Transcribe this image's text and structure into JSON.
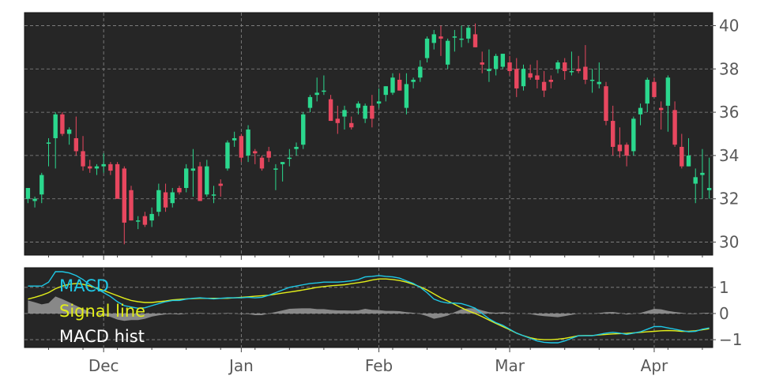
{
  "chart_data": [
    {
      "type": "candlestick",
      "title": "",
      "xlabel": "",
      "ylabel": "",
      "ylim": [
        29.4,
        40.6
      ],
      "yticks": [
        30,
        32,
        34,
        36,
        38,
        40
      ],
      "ytick_labels": [
        "30",
        "32",
        "34",
        "36",
        "38",
        "40"
      ],
      "xtick_labels": [
        "Dec",
        "Jan",
        "Feb",
        "Mar",
        "Apr"
      ],
      "grid": true,
      "up_color": "#2bd88e",
      "down_color": "#e8475f",
      "n_sessions": 100,
      "month_start_index": [
        11,
        31,
        51,
        70,
        91
      ],
      "candles": [
        [
          32.0,
          32.5,
          31.8,
          32.5
        ],
        [
          31.9,
          32.1,
          31.6,
          32.0
        ],
        [
          32.2,
          33.2,
          31.8,
          33.1
        ],
        [
          34.6,
          34.8,
          33.5,
          34.6
        ],
        [
          34.8,
          36.0,
          33.4,
          35.9
        ],
        [
          35.9,
          36.0,
          34.9,
          35.0
        ],
        [
          35.0,
          35.3,
          34.5,
          35.2
        ],
        [
          34.8,
          35.8,
          34.0,
          34.2
        ],
        [
          34.2,
          34.9,
          33.3,
          33.5
        ],
        [
          33.5,
          33.8,
          33.2,
          33.4
        ],
        [
          33.4,
          33.6,
          33.1,
          33.5
        ],
        [
          33.5,
          34.1,
          33.2,
          33.6
        ],
        [
          33.6,
          33.7,
          33.1,
          33.3
        ],
        [
          33.6,
          33.7,
          32.0,
          32.0
        ],
        [
          33.4,
          33.5,
          29.9,
          30.9
        ],
        [
          32.4,
          32.6,
          31.0,
          31.0
        ],
        [
          31.0,
          31.2,
          30.6,
          31.0
        ],
        [
          31.2,
          31.4,
          30.7,
          30.8
        ],
        [
          31.0,
          31.6,
          30.7,
          31.3
        ],
        [
          31.4,
          32.7,
          31.2,
          32.4
        ],
        [
          32.3,
          32.7,
          31.4,
          31.6
        ],
        [
          31.8,
          32.5,
          31.6,
          32.3
        ],
        [
          32.5,
          32.6,
          32.2,
          32.3
        ],
        [
          32.5,
          33.6,
          32.3,
          33.4
        ],
        [
          33.3,
          34.3,
          32.1,
          33.4
        ],
        [
          33.5,
          33.7,
          31.9,
          31.9
        ],
        [
          32.2,
          33.8,
          32.1,
          33.5
        ],
        [
          32.2,
          32.6,
          31.8,
          32.2
        ],
        [
          32.7,
          32.9,
          32.1,
          32.6
        ],
        [
          33.4,
          34.7,
          33.3,
          34.6
        ],
        [
          34.7,
          35.1,
          34.4,
          34.8
        ],
        [
          34.9,
          35.0,
          33.7,
          33.9
        ],
        [
          34.0,
          35.4,
          33.7,
          35.2
        ],
        [
          34.2,
          34.3,
          33.6,
          34.1
        ],
        [
          33.9,
          34.0,
          33.3,
          33.4
        ],
        [
          34.2,
          34.4,
          33.7,
          33.9
        ],
        [
          33.4,
          33.6,
          32.4,
          33.4
        ],
        [
          33.6,
          33.7,
          32.8,
          33.7
        ],
        [
          33.9,
          34.3,
          33.5,
          33.9
        ],
        [
          34.3,
          34.6,
          34.0,
          34.4
        ],
        [
          34.5,
          36.0,
          34.3,
          35.9
        ],
        [
          36.2,
          36.8,
          36.0,
          36.7
        ],
        [
          36.8,
          37.6,
          36.5,
          36.9
        ],
        [
          37.0,
          37.7,
          36.8,
          37.0
        ],
        [
          36.6,
          36.8,
          35.6,
          35.6
        ],
        [
          35.7,
          36.3,
          35.0,
          35.5
        ],
        [
          35.8,
          36.3,
          35.2,
          36.1
        ],
        [
          35.5,
          35.8,
          35.2,
          35.3
        ],
        [
          36.2,
          36.5,
          35.9,
          36.4
        ],
        [
          35.7,
          36.4,
          35.5,
          36.3
        ],
        [
          36.3,
          36.8,
          35.3,
          35.7
        ],
        [
          36.4,
          37.1,
          36.2,
          36.5
        ],
        [
          36.8,
          37.2,
          36.5,
          37.2
        ],
        [
          36.9,
          37.8,
          36.8,
          37.6
        ],
        [
          37.5,
          37.8,
          37.0,
          37.0
        ],
        [
          36.2,
          37.8,
          35.9,
          37.3
        ],
        [
          37.4,
          37.6,
          37.1,
          37.5
        ],
        [
          37.6,
          38.4,
          37.4,
          38.1
        ],
        [
          38.5,
          39.5,
          38.3,
          39.4
        ],
        [
          39.2,
          39.8,
          38.9,
          39.6
        ],
        [
          39.5,
          40.0,
          38.6,
          39.4
        ],
        [
          38.2,
          39.4,
          38.0,
          39.3
        ],
        [
          39.5,
          39.8,
          38.8,
          39.5
        ],
        [
          39.4,
          40.0,
          39.0,
          39.4
        ],
        [
          39.4,
          40.0,
          39.2,
          39.9
        ],
        [
          39.6,
          40.1,
          39.0,
          39.0
        ],
        [
          38.3,
          38.8,
          37.8,
          38.2
        ],
        [
          37.9,
          38.9,
          37.4,
          38.0
        ],
        [
          38.0,
          38.7,
          37.7,
          38.6
        ],
        [
          38.1,
          38.7,
          38.0,
          38.7
        ],
        [
          38.3,
          38.6,
          37.7,
          37.9
        ],
        [
          38.0,
          38.5,
          36.7,
          37.1
        ],
        [
          37.2,
          38.2,
          37.0,
          38.0
        ],
        [
          37.8,
          38.2,
          37.5,
          37.6
        ],
        [
          37.7,
          38.4,
          37.1,
          37.5
        ],
        [
          37.4,
          37.9,
          36.7,
          37.0
        ],
        [
          37.5,
          37.7,
          37.1,
          37.4
        ],
        [
          38.0,
          38.4,
          37.8,
          38.3
        ],
        [
          38.3,
          38.5,
          37.5,
          37.9
        ],
        [
          37.9,
          38.8,
          37.7,
          37.9
        ],
        [
          38.0,
          38.6,
          37.8,
          37.9
        ],
        [
          38.1,
          39.1,
          37.3,
          37.5
        ],
        [
          37.5,
          38.0,
          36.9,
          37.5
        ],
        [
          37.3,
          38.3,
          37.1,
          37.4
        ],
        [
          37.2,
          37.4,
          35.4,
          35.6
        ],
        [
          35.6,
          36.3,
          34.0,
          34.4
        ],
        [
          34.5,
          35.3,
          33.9,
          34.2
        ],
        [
          34.5,
          34.6,
          33.5,
          34.0
        ],
        [
          34.2,
          35.8,
          34.0,
          35.7
        ],
        [
          35.9,
          36.4,
          35.4,
          36.2
        ],
        [
          36.4,
          37.6,
          36.0,
          37.5
        ],
        [
          37.4,
          37.6,
          36.7,
          36.7
        ],
        [
          36.2,
          36.5,
          35.2,
          36.1
        ],
        [
          36.3,
          37.7,
          35.1,
          37.6
        ],
        [
          36.1,
          36.5,
          34.4,
          34.5
        ],
        [
          34.4,
          35.0,
          33.4,
          33.5
        ],
        [
          33.5,
          34.8,
          33.5,
          34.0
        ],
        [
          32.7,
          33.4,
          31.8,
          33.0
        ],
        [
          33.1,
          34.3,
          32.0,
          33.2
        ],
        [
          32.4,
          33.9,
          32.0,
          32.5
        ]
      ]
    },
    {
      "type": "line",
      "title": "",
      "xlabel": "",
      "ylabel": "",
      "ylim": [
        -1.3,
        1.75
      ],
      "yticks": [
        -1,
        0,
        1
      ],
      "ytick_labels": [
        "−1",
        "0",
        "1"
      ],
      "grid": true,
      "legend": "top-left",
      "series": [
        {
          "name": "MACD",
          "color": "#1ec8e6",
          "values": [
            1.05,
            1.05,
            1.05,
            1.2,
            1.6,
            1.6,
            1.55,
            1.45,
            1.3,
            1.1,
            0.95,
            0.8,
            0.65,
            0.45,
            0.3,
            0.25,
            0.2,
            0.22,
            0.3,
            0.38,
            0.45,
            0.5,
            0.5,
            0.55,
            0.58,
            0.6,
            0.58,
            0.56,
            0.58,
            0.6,
            0.6,
            0.6,
            0.62,
            0.6,
            0.62,
            0.7,
            0.8,
            0.9,
            1.0,
            1.05,
            1.1,
            1.15,
            1.17,
            1.2,
            1.2,
            1.2,
            1.22,
            1.25,
            1.3,
            1.4,
            1.42,
            1.45,
            1.42,
            1.4,
            1.35,
            1.25,
            1.15,
            1.0,
            0.8,
            0.55,
            0.45,
            0.4,
            0.4,
            0.38,
            0.3,
            0.2,
            0.0,
            -0.2,
            -0.35,
            -0.45,
            -0.6,
            -0.75,
            -0.85,
            -0.95,
            -1.05,
            -1.1,
            -1.12,
            -1.12,
            -1.05,
            -0.95,
            -0.85,
            -0.85,
            -0.85,
            -0.8,
            -0.75,
            -0.72,
            -0.75,
            -0.8,
            -0.75,
            -0.7,
            -0.6,
            -0.5,
            -0.5,
            -0.55,
            -0.6,
            -0.65,
            -0.7,
            -0.68,
            -0.6,
            -0.55
          ]
        },
        {
          "name": "Signal line",
          "color": "#e2ee1a",
          "values": [
            0.55,
            0.62,
            0.7,
            0.8,
            0.95,
            1.05,
            1.12,
            1.15,
            1.12,
            1.05,
            0.97,
            0.88,
            0.78,
            0.68,
            0.58,
            0.5,
            0.45,
            0.42,
            0.42,
            0.45,
            0.48,
            0.52,
            0.54,
            0.56,
            0.57,
            0.58,
            0.58,
            0.58,
            0.58,
            0.58,
            0.6,
            0.62,
            0.64,
            0.66,
            0.68,
            0.7,
            0.74,
            0.78,
            0.82,
            0.86,
            0.9,
            0.95,
            1.0,
            1.03,
            1.06,
            1.08,
            1.1,
            1.14,
            1.18,
            1.22,
            1.28,
            1.32,
            1.32,
            1.3,
            1.26,
            1.2,
            1.12,
            1.02,
            0.9,
            0.75,
            0.6,
            0.48,
            0.35,
            0.22,
            0.1,
            0.0,
            -0.12,
            -0.25,
            -0.38,
            -0.5,
            -0.62,
            -0.75,
            -0.85,
            -0.93,
            -0.98,
            -1.0,
            -1.0,
            -0.98,
            -0.95,
            -0.9,
            -0.85,
            -0.84,
            -0.84,
            -0.82,
            -0.8,
            -0.78,
            -0.77,
            -0.76,
            -0.74,
            -0.72,
            -0.7,
            -0.68,
            -0.66,
            -0.65,
            -0.66,
            -0.68,
            -0.68,
            -0.66,
            -0.62,
            -0.58
          ]
        },
        {
          "name": "MACD hist",
          "color": "#9a9a9a",
          "values": [
            0.5,
            0.43,
            0.35,
            0.4,
            0.65,
            0.55,
            0.43,
            0.3,
            0.18,
            0.05,
            -0.02,
            -0.08,
            -0.13,
            -0.23,
            -0.28,
            -0.25,
            -0.25,
            -0.2,
            -0.12,
            -0.07,
            -0.03,
            -0.02,
            -0.04,
            -0.01,
            0.01,
            0.02,
            0.0,
            -0.02,
            0.0,
            0.02,
            0.0,
            -0.02,
            -0.02,
            -0.06,
            -0.06,
            0.0,
            0.06,
            0.12,
            0.18,
            0.19,
            0.2,
            0.2,
            0.17,
            0.17,
            0.14,
            0.12,
            0.12,
            0.11,
            0.12,
            0.18,
            0.14,
            0.13,
            0.1,
            0.1,
            0.09,
            0.05,
            0.03,
            -0.02,
            -0.1,
            -0.2,
            -0.15,
            -0.08,
            0.05,
            0.16,
            0.2,
            0.2,
            0.12,
            0.05,
            0.03,
            0.05,
            0.02,
            0.0,
            0.0,
            -0.02,
            -0.07,
            -0.1,
            -0.12,
            -0.14,
            -0.1,
            -0.05,
            0.0,
            -0.01,
            -0.01,
            0.02,
            0.05,
            0.06,
            0.02,
            -0.04,
            -0.01,
            0.02,
            0.1,
            0.18,
            0.16,
            0.1,
            0.06,
            0.03,
            -0.02,
            -0.02,
            0.02,
            0.03
          ]
        }
      ],
      "legend_entries": [
        "MACD",
        "Signal line",
        "MACD hist"
      ]
    }
  ],
  "colors": {
    "panel_bg": "#262626",
    "grid": "#8a8a8a",
    "tick_text": "#595959",
    "legend_macd": "#1ec8e6",
    "legend_signal": "#e2ee1a",
    "legend_hist": "#ffffff"
  }
}
